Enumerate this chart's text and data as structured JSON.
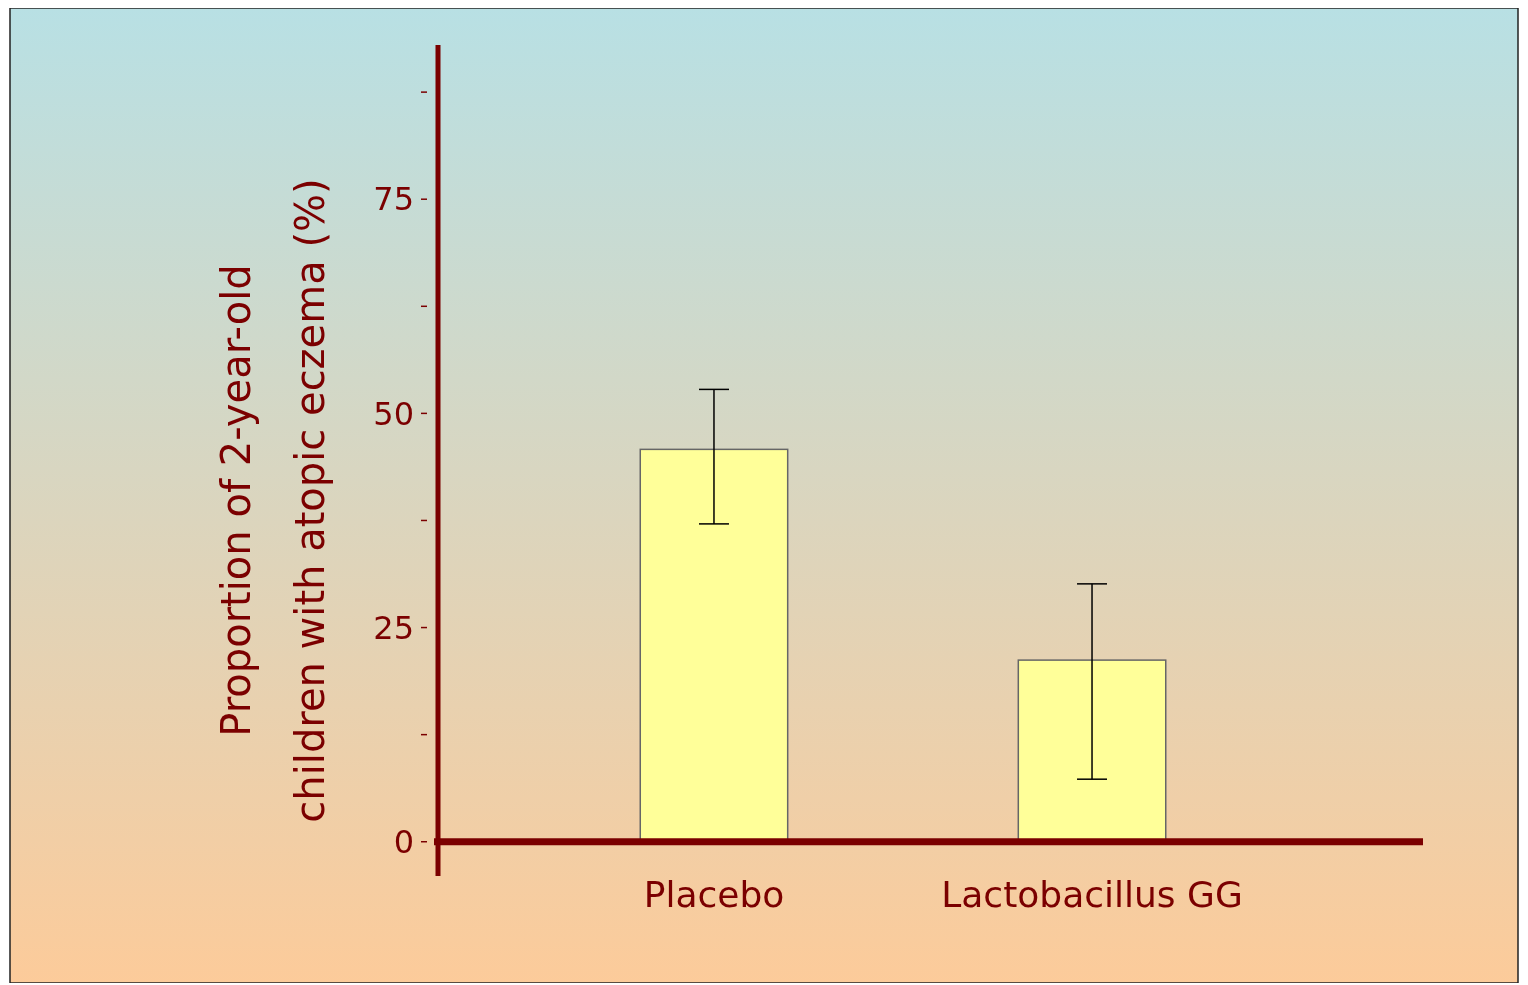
{
  "chart_data": {
    "type": "bar",
    "ylabel": "Proportion of 2-year-old children with atopic eczema (%)",
    "categories": [
      "Placebo",
      "Lactobacillus GG"
    ],
    "values": [
      45.8,
      21.2
    ],
    "errors": [
      [
        37.1,
        52.8
      ],
      [
        7.3,
        30.1
      ]
    ],
    "color": "#ffff99",
    "ylim": [
      -4,
      93
    ],
    "yticks": [
      0,
      {
        "value": 12.5,
        "label": null
      },
      25,
      {
        "value": 37.5,
        "label": null
      },
      50,
      {
        "value": 62.5,
        "label": null
      },
      75,
      {
        "value": 87.5,
        "label": null
      }
    ],
    "grid": false
  }
}
